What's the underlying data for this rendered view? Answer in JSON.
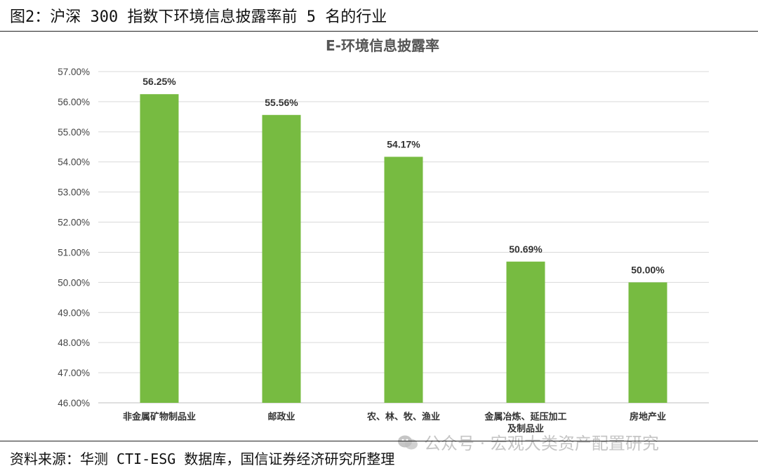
{
  "figure": {
    "title": "图2：沪深 300 指数下环境信息披露率前 5 名的行业",
    "source": "资料来源：华测 CTI-ESG 数据库，国信证券经济研究所整理",
    "watermark": "公众号 · 宏观大类资产配置研究"
  },
  "colors": {
    "bar": "#77bb41",
    "grid": "#d9d9d9",
    "axis": "#bfbfbf"
  },
  "chart_data": {
    "type": "bar",
    "title": "E-环境信息披露率",
    "categories": [
      [
        "非金属矿物制品业"
      ],
      [
        "邮政业"
      ],
      [
        "农、林、牧、渔业"
      ],
      [
        "金属冶炼、延压加工",
        "及制品业"
      ],
      [
        "房地产业"
      ]
    ],
    "values": [
      56.25,
      55.56,
      54.17,
      50.69,
      50.0
    ],
    "data_labels": [
      "56.25%",
      "55.56%",
      "54.17%",
      "50.69%",
      "50.00%"
    ],
    "ylim": [
      46,
      57
    ],
    "yticks": [
      46,
      47,
      48,
      49,
      50,
      51,
      52,
      53,
      54,
      55,
      56,
      57
    ],
    "ytick_labels": [
      "46.00%",
      "47.00%",
      "48.00%",
      "49.00%",
      "50.00%",
      "51.00%",
      "52.00%",
      "53.00%",
      "54.00%",
      "55.00%",
      "56.00%",
      "57.00%"
    ],
    "grid": true,
    "legend": "none",
    "xlabel": "",
    "ylabel": ""
  }
}
